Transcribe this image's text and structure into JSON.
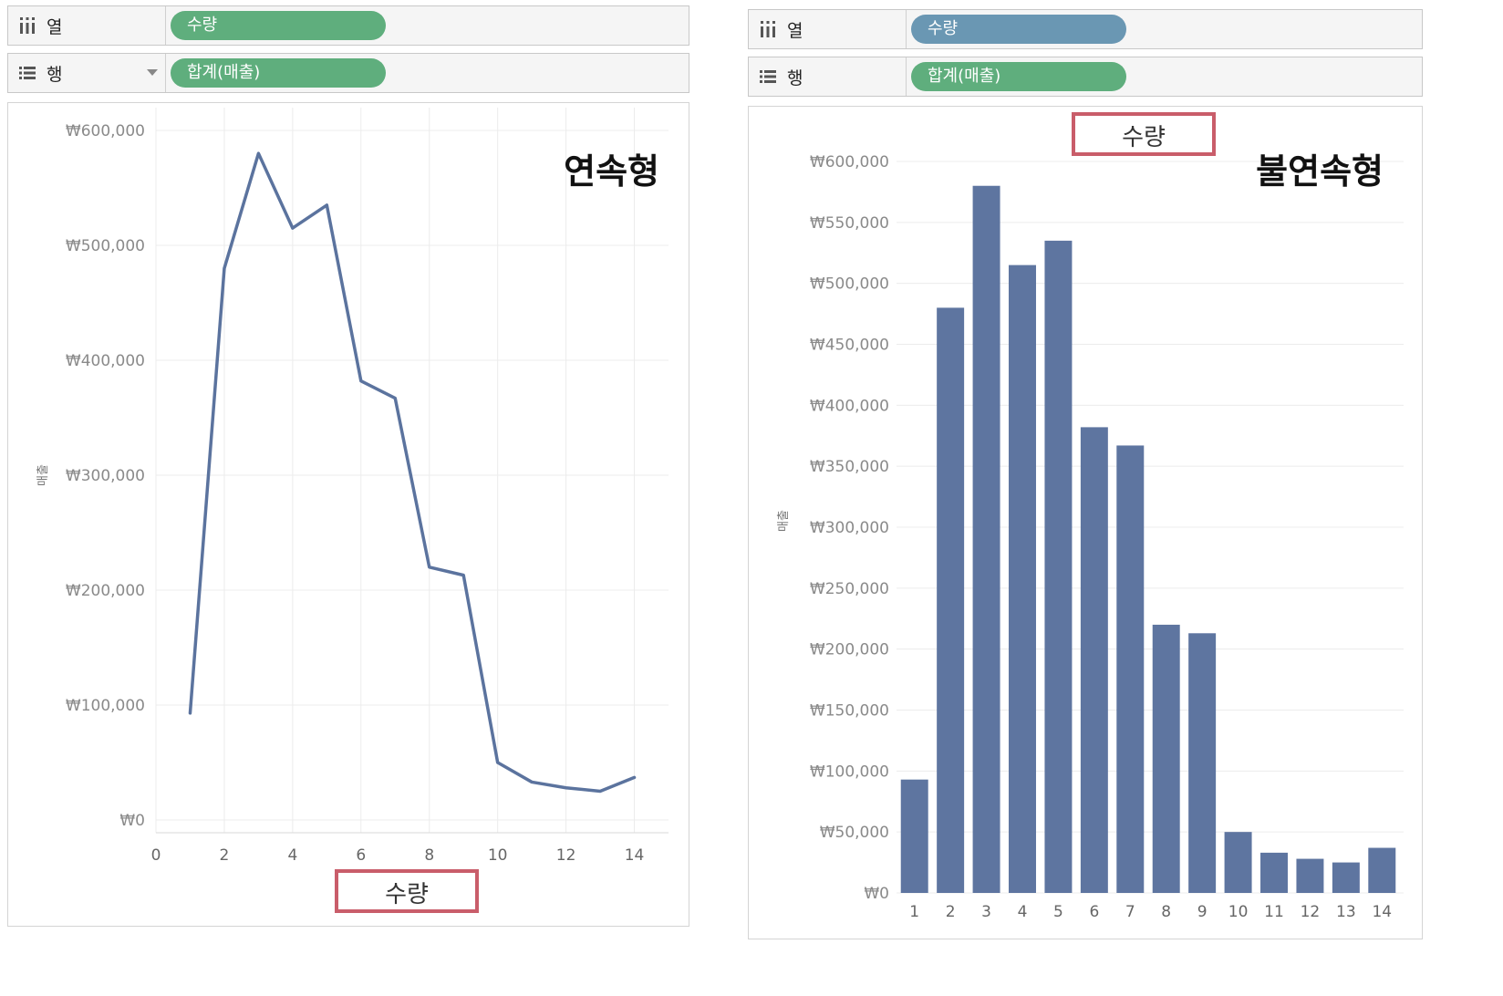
{
  "colors": {
    "line": "#5b739e",
    "bar": "#5e75a0",
    "pill_green": "#5fae7d",
    "pill_blue": "#6a97b3",
    "highlight_box": "#c95d6a",
    "grid": "#ececec",
    "tick_text": "#8a8a8a"
  },
  "left_panel": {
    "columns_shelf": {
      "icon": "columns-icon",
      "label": "열",
      "pill": "수량"
    },
    "rows_shelf": {
      "icon": "rows-icon",
      "label": "행",
      "pill": "합계(매출)"
    }
  },
  "right_panel": {
    "columns_shelf": {
      "icon": "columns-icon",
      "label": "열",
      "pill": "수량"
    },
    "rows_shelf": {
      "icon": "rows-icon",
      "label": "행",
      "pill": "합계(매출)"
    }
  },
  "chart_data": [
    {
      "type": "line",
      "title": "연속형",
      "xlabel": "수량",
      "ylabel": "매출",
      "x": [
        1,
        2,
        3,
        4,
        5,
        6,
        7,
        8,
        9,
        10,
        11,
        12,
        13,
        14
      ],
      "values": [
        93000,
        480000,
        580000,
        515000,
        535000,
        382000,
        367000,
        220000,
        213000,
        50000,
        33000,
        28000,
        25000,
        37000
      ],
      "xticks": [
        0,
        2,
        4,
        6,
        8,
        10,
        12,
        14
      ],
      "xtick_labels": [
        "0",
        "2",
        "4",
        "6",
        "8",
        "10",
        12,
        "14"
      ],
      "xlim": [
        0,
        15
      ],
      "ylim": [
        0,
        600000
      ],
      "ytick_labels": [
        "₩0",
        "₩100,000",
        "₩200,000",
        "₩300,000",
        "₩400,000",
        "₩500,000",
        "₩600,000"
      ],
      "grid": true
    },
    {
      "type": "bar",
      "title": "불연속형",
      "xlabel": "수량",
      "ylabel": "매출",
      "categories": [
        "1",
        "2",
        "3",
        "4",
        "5",
        "6",
        "7",
        "8",
        "9",
        "10",
        "11",
        "12",
        "13",
        "14"
      ],
      "values": [
        93000,
        480000,
        580000,
        515000,
        535000,
        382000,
        367000,
        220000,
        213000,
        50000,
        33000,
        28000,
        25000,
        37000
      ],
      "ylim": [
        0,
        600000
      ],
      "ytick_labels": [
        "₩0",
        "₩50,000",
        "₩100,000",
        "₩150,000",
        "₩200,000",
        "₩250,000",
        "₩300,000",
        "₩350,000",
        "₩400,000",
        "₩450,000",
        "₩500,000",
        "₩550,000",
        "₩600,000"
      ],
      "grid": true
    }
  ]
}
